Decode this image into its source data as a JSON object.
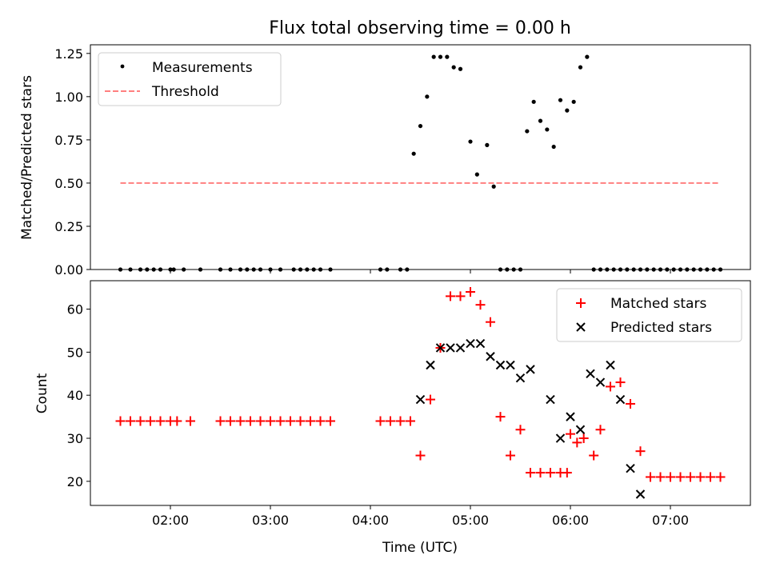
{
  "title": "Flux total observing time = 0.00 h",
  "colors": {
    "measurements": "#000000",
    "threshold": "#ff7f7f",
    "matched": "#ff0000",
    "predicted": "#000000"
  },
  "chart_data": [
    {
      "type": "scatter",
      "title": "Flux total observing time = 0.00 h",
      "xlabel": "",
      "ylabel": "Matched/Predicted stars",
      "xlim": [
        "01:12",
        "07:48"
      ],
      "ylim": [
        0,
        1.3
      ],
      "xticks": [
        "02:00",
        "03:00",
        "04:00",
        "05:00",
        "06:00",
        "07:00"
      ],
      "yticks": [
        "0.00",
        "0.25",
        "0.50",
        "0.75",
        "1.00",
        "1.25"
      ],
      "legend": "top-left",
      "series": [
        {
          "name": "Measurements",
          "marker": "dot",
          "x": [
            "01:30",
            "01:36",
            "01:42",
            "01:46",
            "01:50",
            "01:54",
            "02:00",
            "02:02",
            "02:08",
            "02:18",
            "02:30",
            "02:36",
            "02:42",
            "02:46",
            "02:50",
            "02:54",
            "03:00",
            "03:06",
            "03:14",
            "03:18",
            "03:22",
            "03:26",
            "03:30",
            "03:36",
            "04:06",
            "04:10",
            "04:18",
            "04:22",
            "04:26",
            "04:30",
            "04:34",
            "04:38",
            "04:42",
            "04:46",
            "04:50",
            "04:54",
            "05:00",
            "05:04",
            "05:10",
            "05:14",
            "05:18",
            "05:22",
            "05:26",
            "05:30",
            "05:34",
            "05:38",
            "05:42",
            "05:46",
            "05:50",
            "05:54",
            "05:58",
            "06:02",
            "06:06",
            "06:10",
            "06:14",
            "06:18",
            "06:22",
            "06:26",
            "06:30",
            "06:34",
            "06:38",
            "06:42",
            "06:46",
            "06:50",
            "06:54",
            "06:58",
            "07:02",
            "07:06",
            "07:10",
            "07:14",
            "07:18",
            "07:22",
            "07:26",
            "07:30"
          ],
          "values": [
            0,
            0,
            0,
            0,
            0,
            0,
            0,
            0,
            0,
            0,
            0,
            0,
            0,
            0,
            0,
            0,
            0,
            0,
            0,
            0,
            0,
            0,
            0,
            0,
            0,
            0,
            0,
            0,
            0.67,
            0.83,
            1.0,
            1.23,
            1.23,
            1.23,
            1.17,
            1.16,
            0.74,
            0.55,
            0.72,
            0.48,
            0,
            0,
            0,
            0,
            0.8,
            0.97,
            0.86,
            0.81,
            0.71,
            0.98,
            0.92,
            0.97,
            1.17,
            1.23,
            0,
            0,
            0,
            0,
            0,
            0,
            0,
            0,
            0,
            0,
            0,
            0,
            0,
            0,
            0,
            0,
            0,
            0,
            0,
            0
          ]
        },
        {
          "name": "Threshold",
          "style": "dashed",
          "x": [
            "01:30",
            "07:30"
          ],
          "values": [
            0.5,
            0.5
          ]
        }
      ]
    },
    {
      "type": "scatter",
      "xlabel": "Time (UTC)",
      "ylabel": "Count",
      "xlim": [
        "01:12",
        "07:48"
      ],
      "ylim": [
        14.4,
        66.6
      ],
      "xticks": [
        "02:00",
        "03:00",
        "04:00",
        "05:00",
        "06:00",
        "07:00"
      ],
      "yticks": [
        "20",
        "30",
        "40",
        "50",
        "60"
      ],
      "legend": "top-right",
      "series": [
        {
          "name": "Matched stars",
          "marker": "plus",
          "x": [
            "01:30",
            "01:36",
            "01:42",
            "01:48",
            "01:54",
            "02:00",
            "02:04",
            "02:12",
            "02:30",
            "02:36",
            "02:42",
            "02:48",
            "02:54",
            "03:00",
            "03:06",
            "03:12",
            "03:18",
            "03:24",
            "03:30",
            "03:36",
            "04:06",
            "04:12",
            "04:18",
            "04:24",
            "04:30",
            "04:36",
            "04:42",
            "04:48",
            "04:54",
            "05:00",
            "05:06",
            "05:12",
            "05:18",
            "05:24",
            "05:30",
            "05:36",
            "05:42",
            "05:48",
            "05:54",
            "05:58",
            "06:00",
            "06:04",
            "06:08",
            "06:14",
            "06:18",
            "06:24",
            "06:30",
            "06:36",
            "06:42",
            "06:48",
            "06:54",
            "07:00",
            "07:06",
            "07:12",
            "07:18",
            "07:24",
            "07:30"
          ],
          "values": [
            34,
            34,
            34,
            34,
            34,
            34,
            34,
            34,
            34,
            34,
            34,
            34,
            34,
            34,
            34,
            34,
            34,
            34,
            34,
            34,
            34,
            34,
            34,
            34,
            26,
            39,
            51,
            63,
            63,
            64,
            61,
            57,
            35,
            26,
            32,
            22,
            22,
            22,
            22,
            22,
            31,
            29,
            30,
            26,
            32,
            42,
            43,
            38,
            27,
            21,
            21,
            21,
            21,
            21,
            21,
            21,
            21
          ]
        },
        {
          "name": "Predicted stars",
          "marker": "x",
          "x": [
            "04:30",
            "04:36",
            "04:42",
            "04:48",
            "04:54",
            "05:00",
            "05:06",
            "05:12",
            "05:18",
            "05:24",
            "05:30",
            "05:36",
            "05:48",
            "05:54",
            "06:00",
            "06:06",
            "06:12",
            "06:18",
            "06:24",
            "06:30",
            "06:36",
            "06:42"
          ],
          "values": [
            39,
            47,
            51,
            51,
            51,
            52,
            52,
            49,
            47,
            47,
            44,
            46,
            39,
            30,
            35,
            32,
            45,
            43,
            47,
            39,
            23,
            17
          ]
        }
      ]
    }
  ]
}
